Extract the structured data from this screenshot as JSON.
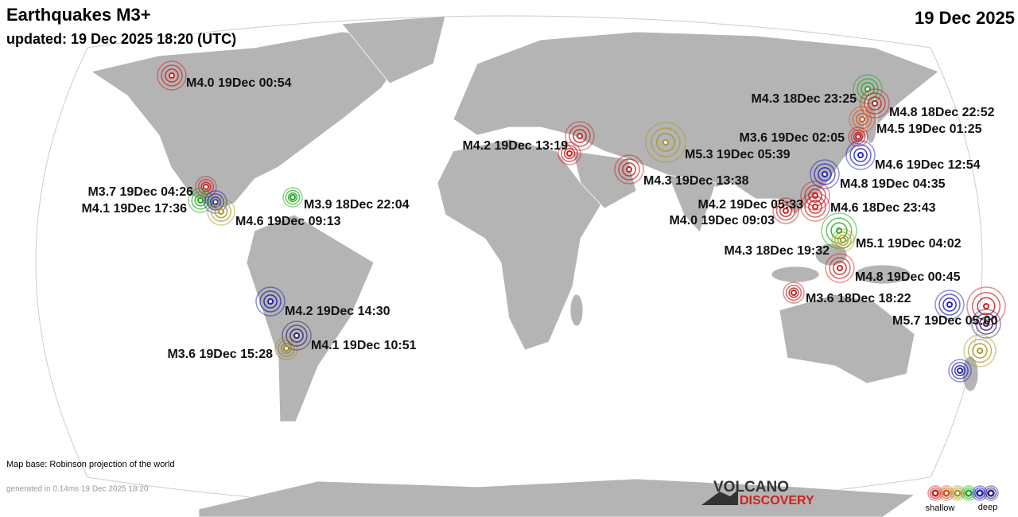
{
  "header": {
    "title": "Earthquakes M3+",
    "updated": "updated: 19 Dec 2025 18:20 (UTC)",
    "date": "19 Dec 2025"
  },
  "quakes": [
    {
      "label": "M4.0 19Dec 00:54",
      "color": "#cc2222"
    },
    {
      "label": "M3.7 19Dec 04:26",
      "color": "#cc2222"
    },
    {
      "label": "M4.1 19Dec 17:36",
      "color": "#22aa22"
    },
    {
      "label": null,
      "color": "#2222bb"
    },
    {
      "label": "M4.6 19Dec 09:13",
      "color": "#aa9922"
    },
    {
      "label": "M3.9 18Dec 22:04",
      "color": "#22aa22"
    },
    {
      "label": "M4.2 19Dec 14:30",
      "color": "#2222aa"
    },
    {
      "label": "M4.1 19Dec 10:51",
      "color": "#33227a"
    },
    {
      "label": "M3.6 19Dec 15:28",
      "color": "#998822"
    },
    {
      "label": "M4.2 19Dec 13:19",
      "color": "#cc2222"
    },
    {
      "label": null,
      "color": "#cc2222"
    },
    {
      "label": "M5.3 19Dec 05:39",
      "color": "#aa9922"
    },
    {
      "label": "M4.3 19Dec 13:38",
      "color": "#cc2222"
    },
    {
      "label": "M4.3 18Dec 23:25",
      "color": "#22aa22"
    },
    {
      "label": "M4.8 18Dec 22:52",
      "color": "#cc2222"
    },
    {
      "label": "M4.5 19Dec 01:25",
      "color": "#dd5522"
    },
    {
      "label": "M3.6 19Dec 02:05",
      "color": "#cc2222"
    },
    {
      "label": "M4.6 19Dec 12:54",
      "color": "#2222bb"
    },
    {
      "label": "M4.8 19Dec 04:35",
      "color": "#2222bb"
    },
    {
      "label": "M4.2 19Dec 05:33",
      "color": "#cc2222"
    },
    {
      "label": "M4.6 18Dec 23:43",
      "color": "#cc2222"
    },
    {
      "label": "M4.0 19Dec 09:03",
      "color": "#cc2222"
    },
    {
      "label": "M5.1 19Dec 04:02",
      "color": "#22aa22"
    },
    {
      "label": "M4.3 18Dec 19:32",
      "color": "#aa9922"
    },
    {
      "label": "M4.8 19Dec 00:45",
      "color": "#cc2222"
    },
    {
      "label": "M3.6 18Dec 18:22",
      "color": "#cc2222"
    },
    {
      "label": "M5.7 19Dec 05:00",
      "color": "#cc2222"
    },
    {
      "label": null,
      "color": "#2222bb"
    },
    {
      "label": null,
      "color": "#33227a"
    },
    {
      "label": null,
      "color": "#aa9922"
    },
    {
      "label": null,
      "color": "#2222bb"
    }
  ],
  "footer": {
    "map_base": "Map base: Robinson projection of the world",
    "generated": "generated in 0.14ms 19 Dec 2025 18:20",
    "logo_top": "VOLCANO",
    "logo_bottom": "DISCOVERY"
  },
  "legend": {
    "shallow": "shallow",
    "deep": "deep",
    "colors": [
      "#cc2222",
      "#dd5522",
      "#aa9922",
      "#22aa22",
      "#2222bb",
      "#33227a"
    ]
  }
}
